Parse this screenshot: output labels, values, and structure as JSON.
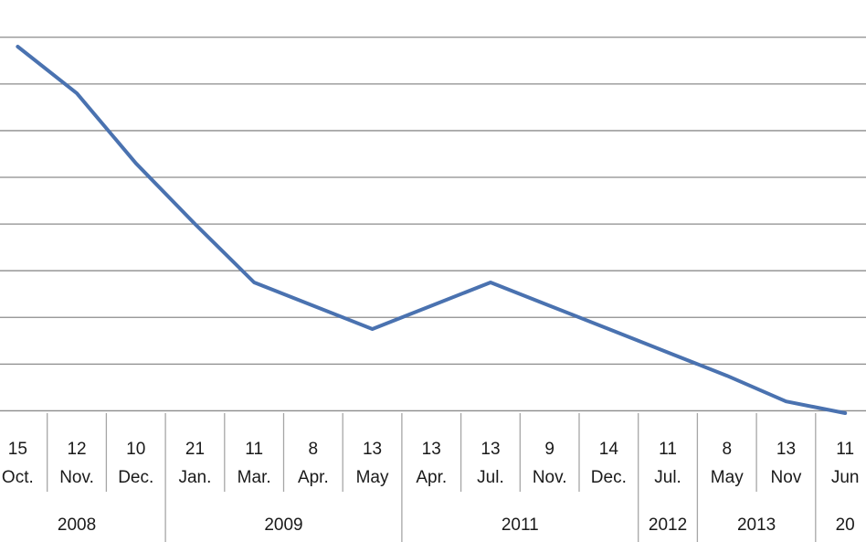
{
  "chart_data": {
    "type": "line",
    "title": "",
    "xlabel": "",
    "ylabel": "",
    "y_axis_tick_labels_visible": false,
    "grid": true,
    "legend": "none",
    "colors": {
      "line": "#4a72b0",
      "grid": "#8c8c8c"
    },
    "categories": [
      {
        "day": "15",
        "month": "Oct.",
        "year": "2008"
      },
      {
        "day": "12",
        "month": "Nov.",
        "year": "2008"
      },
      {
        "day": "10",
        "month": "Dec.",
        "year": "2008"
      },
      {
        "day": "21",
        "month": "Jan.",
        "year": "2009"
      },
      {
        "day": "11",
        "month": "Mar.",
        "year": "2009"
      },
      {
        "day": "8",
        "month": "Apr.",
        "year": "2009"
      },
      {
        "day": "13",
        "month": "May",
        "year": "2009"
      },
      {
        "day": "13",
        "month": "Apr.",
        "year": "2011"
      },
      {
        "day": "13",
        "month": "Jul.",
        "year": "2011"
      },
      {
        "day": "9",
        "month": "Nov.",
        "year": "2011"
      },
      {
        "day": "14",
        "month": "Dec.",
        "year": "2011"
      },
      {
        "day": "11",
        "month": "Jul.",
        "year": "2012"
      },
      {
        "day": "8",
        "month": "May",
        "year": "2013"
      },
      {
        "day": "13",
        "month": "Nov",
        "year": "2013"
      },
      {
        "day": "11",
        "month": "Jun",
        "year": "20"
      }
    ],
    "year_groups": [
      {
        "label": "2008",
        "count": 3
      },
      {
        "label": "2009",
        "count": 4
      },
      {
        "label": "2011",
        "count": 4
      },
      {
        "label": "2012",
        "count": 1
      },
      {
        "label": "2013",
        "count": 2
      },
      {
        "label": "20",
        "count": 1
      }
    ],
    "series": [
      {
        "values": [
          7.3,
          6.3,
          4.8,
          3.5,
          2.25,
          1.75,
          1.25,
          1.75,
          2.25,
          1.75,
          1.25,
          0.75,
          0.25,
          -0.3,
          -0.55
        ]
      }
    ],
    "ylim": [
      -0.55,
      7.75
    ],
    "gridlines": [
      -0.5,
      0.5,
      1.5,
      2.5,
      3.5,
      4.5,
      5.5,
      6.5,
      7.5
    ]
  }
}
